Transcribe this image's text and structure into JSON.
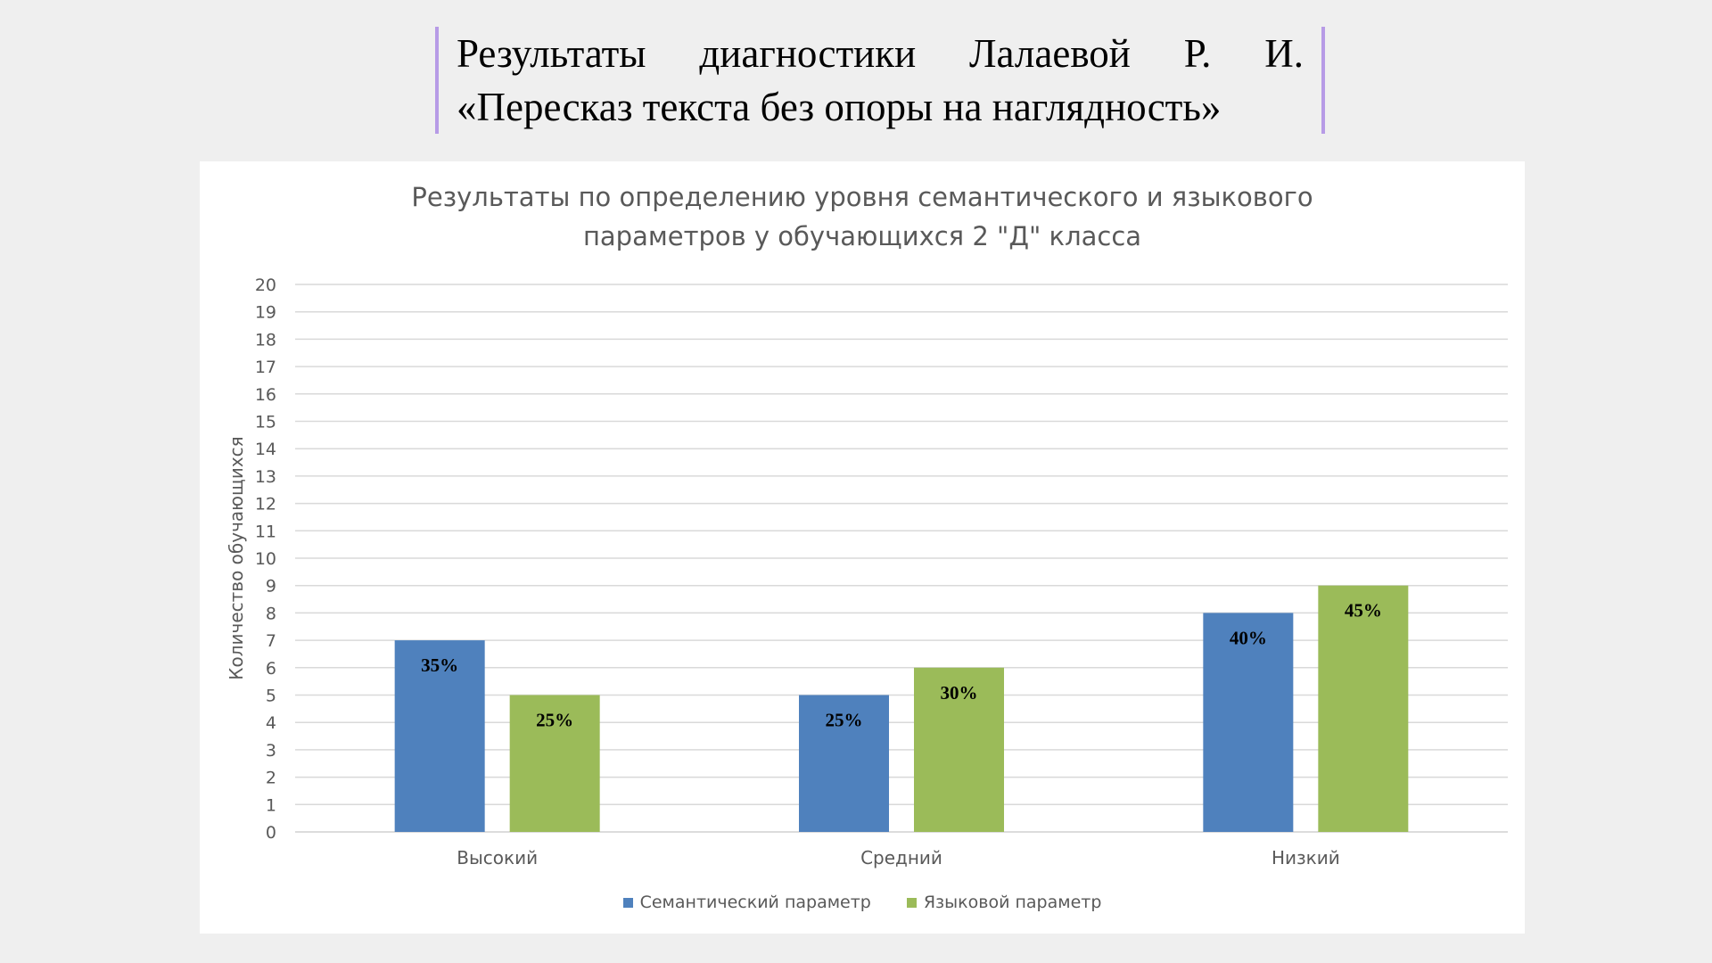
{
  "slide": {
    "title_line1": "Результаты диагностики Лалаевой Р. И.",
    "title_line2": "«Пересказ текста без опоры на наглядность»"
  },
  "chart_data": {
    "type": "bar",
    "title": "Результаты по определению уровня семантического и языкового параметров у обучающихся 2 \"Д\" класса",
    "title_lines": [
      "Результаты по определению уровня семантического и языкового",
      "параметров у обучающихся 2 \"Д\" класса"
    ],
    "xlabel": "",
    "ylabel": "Количество обучающихся",
    "ylim": [
      0,
      20
    ],
    "ytick_step": 1,
    "grid": true,
    "legend_position": "bottom",
    "categories": [
      "Высокий",
      "Средний",
      "Низкий"
    ],
    "series": [
      {
        "name": "Семантический параметр",
        "color": "#4f81bd",
        "values": [
          7,
          5,
          8
        ],
        "labels": [
          "35%",
          "25%",
          "40%"
        ]
      },
      {
        "name": "Языковой параметр",
        "color": "#9bbb59",
        "values": [
          5,
          6,
          9
        ],
        "labels": [
          "25%",
          "30%",
          "45%"
        ]
      }
    ]
  }
}
